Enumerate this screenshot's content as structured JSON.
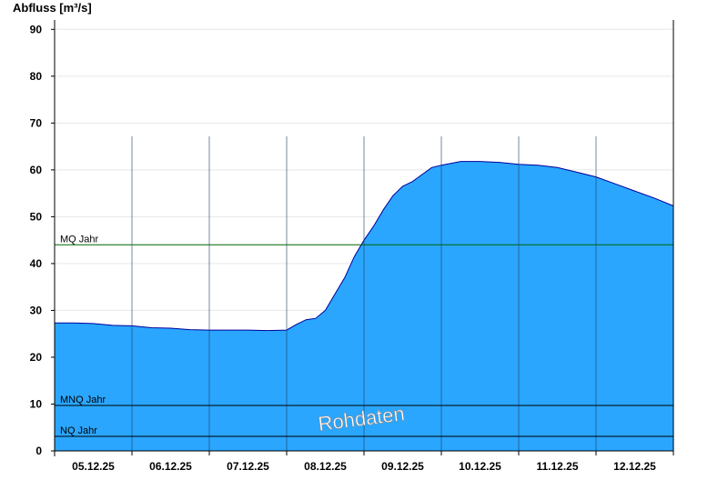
{
  "chart_data": {
    "type": "area",
    "title": "",
    "ylabel": "Abfluss [m³/s]",
    "xlabel": "",
    "ylim": [
      0,
      92
    ],
    "yticks": [
      0,
      10,
      20,
      30,
      40,
      50,
      60,
      70,
      80,
      90
    ],
    "x_range": [
      "05.12.25 00:00",
      "13.12.25 00:00"
    ],
    "x_tick_labels": [
      "05.12.25",
      "06.12.25",
      "07.12.25",
      "08.12.25",
      "09.12.25",
      "10.12.25",
      "11.12.25",
      "12.12.25"
    ],
    "grid": "horizontal",
    "fill_color": "#2aa6ff",
    "line_color": "#00009a",
    "series": [
      {
        "x": [
          "05.12.25 00:00",
          "05.12.25 06:00",
          "05.12.25 12:00",
          "05.12.25 18:00",
          "06.12.25 00:00",
          "06.12.25 06:00",
          "06.12.25 12:00",
          "06.12.25 18:00",
          "07.12.25 00:00",
          "07.12.25 06:00",
          "07.12.25 12:00",
          "07.12.25 18:00",
          "08.12.25 00:00",
          "08.12.25 03:00",
          "08.12.25 06:00",
          "08.12.25 09:00",
          "08.12.25 12:00",
          "08.12.25 15:00",
          "08.12.25 18:00",
          "08.12.25 21:00",
          "09.12.25 00:00",
          "09.12.25 03:00",
          "09.12.25 06:00",
          "09.12.25 09:00",
          "09.12.25 12:00",
          "09.12.25 15:00",
          "09.12.25 18:00",
          "09.12.25 21:00",
          "10.12.25 00:00",
          "10.12.25 06:00",
          "10.12.25 12:00",
          "10.12.25 18:00",
          "11.12.25 00:00",
          "11.12.25 06:00",
          "11.12.25 12:00",
          "11.12.25 18:00",
          "12.12.25 00:00",
          "12.12.25 06:00",
          "12.12.25 12:00",
          "12.12.25 18:00",
          "13.12.25 00:00"
        ],
        "values": [
          27.3,
          27.3,
          27.2,
          26.8,
          26.7,
          26.3,
          26.2,
          25.9,
          25.8,
          25.8,
          25.8,
          25.7,
          25.8,
          27.0,
          28.0,
          28.3,
          30.0,
          33.5,
          37.0,
          41.5,
          45.0,
          48.0,
          51.5,
          54.5,
          56.5,
          57.5,
          59.0,
          60.5,
          61.0,
          61.8,
          61.8,
          61.6,
          61.2,
          61.0,
          60.5,
          59.5,
          58.5,
          57.0,
          55.5,
          54.0,
          52.3
        ]
      }
    ],
    "reference_lines": [
      {
        "label": "MQ Jahr",
        "value": 44.0,
        "color": "#006400"
      },
      {
        "label": "MNQ Jahr",
        "value": 9.7,
        "color": "#000000"
      },
      {
        "label": "NQ Jahr",
        "value": 3.1,
        "color": "#000000"
      }
    ],
    "watermark": "Rohdaten"
  }
}
